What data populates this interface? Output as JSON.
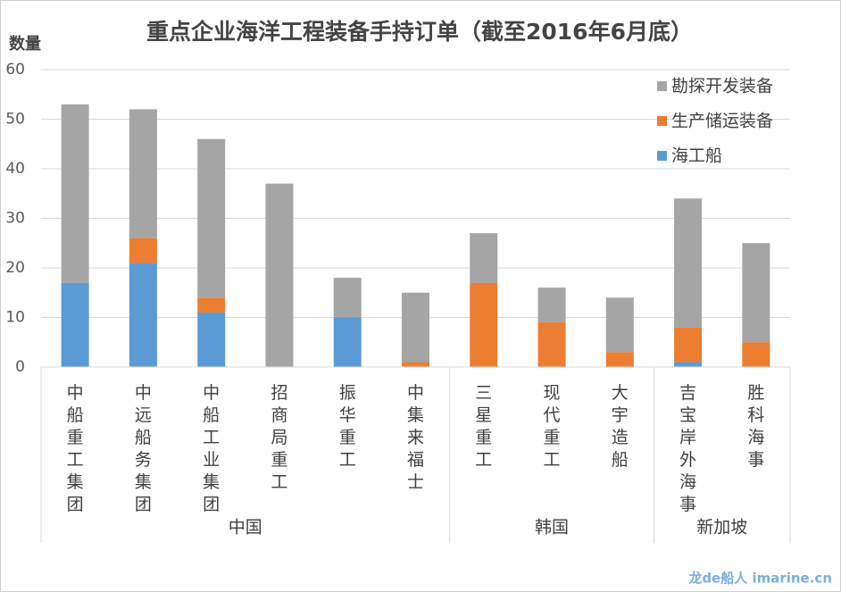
{
  "chart_data": {
    "type": "stacked_bar",
    "title": "重点企业海洋工程装备手持订单（截至2016年6月底）",
    "y_label": "数量",
    "categories": [
      "中船重工集团",
      "中远船务集团",
      "中船工业集团",
      "招商局重工",
      "振华重工",
      "中集来福士",
      "三星重工",
      "现代重工",
      "大宇造船",
      "吉宝岸外海事",
      "胜科海事"
    ],
    "groups": [
      {
        "label": "中国",
        "span": 6
      },
      {
        "label": "韩国",
        "span": 3
      },
      {
        "label": "新加坡",
        "span": 2
      }
    ],
    "series": [
      {
        "name": "海工船",
        "color": "#5b9bd5",
        "values": [
          17,
          21,
          11,
          0,
          10,
          0,
          0,
          0,
          0,
          1,
          0
        ]
      },
      {
        "name": "生产储运装备",
        "color": "#ed7d31",
        "values": [
          0,
          5,
          3,
          0,
          0,
          1,
          17,
          9,
          3,
          7,
          5
        ]
      },
      {
        "name": "勘探开发装备",
        "color": "#a5a5a5",
        "values": [
          36,
          26,
          32,
          37,
          8,
          14,
          10,
          7,
          11,
          26,
          20
        ]
      }
    ],
    "ylim": [
      0,
      60
    ],
    "yticks": [
      0,
      10,
      20,
      30,
      40,
      50,
      60
    ],
    "grid": true,
    "legend": "top-right",
    "watermark": "龙de船人 imarine.cn"
  }
}
